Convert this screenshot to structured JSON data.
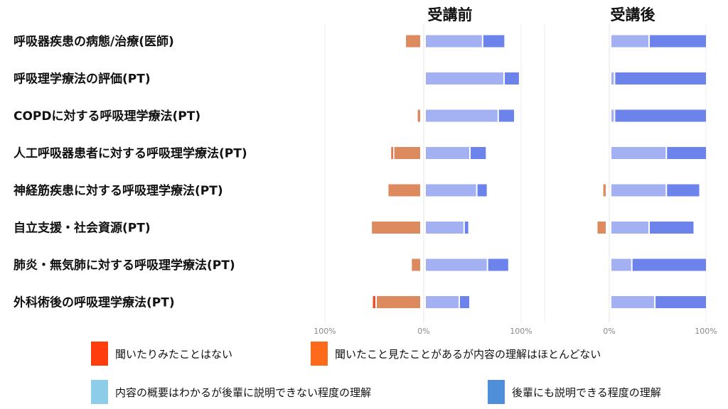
{
  "chart_data": {
    "type": "bar",
    "stacked": "diverging-horizontal",
    "categories": [
      "呼吸器疾患の病態/治療(医師)",
      "呼吸理学療法の評価(PT)",
      "COPDに対する呼吸理学療法(PT)",
      "人工呼吸器患者に対する呼吸理学療法(PT)",
      "神経筋疾患に対する呼吸理学療法(PT)",
      "自立支援・社会資源(PT)",
      "肺炎・無気肺に対する呼吸理学療法(PT)",
      "外科術後の呼吸理学療法(PT)"
    ],
    "panels": [
      {
        "title": "受講前",
        "xlim": [
          -100,
          100
        ],
        "ticks": [
          "100%",
          "0%",
          "100%"
        ],
        "series": [
          {
            "name": "聞いたりみたことはない",
            "values": [
              0,
              0,
              0,
              3,
              0,
              0,
              0,
              4
            ]
          },
          {
            "name": "聞いたこと見たことがあるが内容の理解はほとんどない",
            "values": [
              16,
              0,
              4,
              28,
              34,
              51,
              10,
              46
            ]
          },
          {
            "name": "内容の概要はわかるが後輩に説明できない程度の理解",
            "values": [
              59,
              81,
              75,
              46,
              53,
              40,
              64,
              35
            ]
          },
          {
            "name": "後輩にも説明できる程度の理解",
            "values": [
              23,
              16,
              17,
              17,
              11,
              5,
              22,
              11
            ]
          }
        ]
      },
      {
        "title": "受講後",
        "xlim": [
          -100,
          100
        ],
        "ticks": [
          "0%",
          "100%"
        ],
        "series": [
          {
            "name": "聞いたりみたことはない",
            "values": [
              0,
              0,
              0,
              0,
              0,
              0,
              0,
              0
            ]
          },
          {
            "name": "聞いたこと見たことがあるが内容の理解はほとんどない",
            "values": [
              0,
              0,
              0,
              0,
              4,
              10,
              0,
              0
            ]
          },
          {
            "name": "内容の概要はわかるが後輩に説明できない程度の理解",
            "values": [
              40,
              4,
              4,
              58,
              58,
              40,
              22,
              46
            ]
          },
          {
            "name": "後輩にも説明できる程度の理解",
            "values": [
              60,
              96,
              96,
              42,
              35,
              47,
              78,
              54
            ]
          }
        ]
      }
    ],
    "colors": [
      "#e8502a",
      "#dd8a5e",
      "#a3b1f2",
      "#6b83ea"
    ],
    "grid": false,
    "legend_position": "bottom"
  },
  "legend": [
    {
      "label": "聞いたりみたことはない",
      "color": "#ff3d0d"
    },
    {
      "label": "聞いたこと見たことがあるが内容の理解はほとんどない",
      "color": "#ff6a1a"
    },
    {
      "label": "内容の概要はわかるが後輩に説明できない程度の理解",
      "color": "#8ecdea"
    },
    {
      "label": "後輩にも説明できる程度の理解",
      "color": "#4f8fd9"
    }
  ]
}
